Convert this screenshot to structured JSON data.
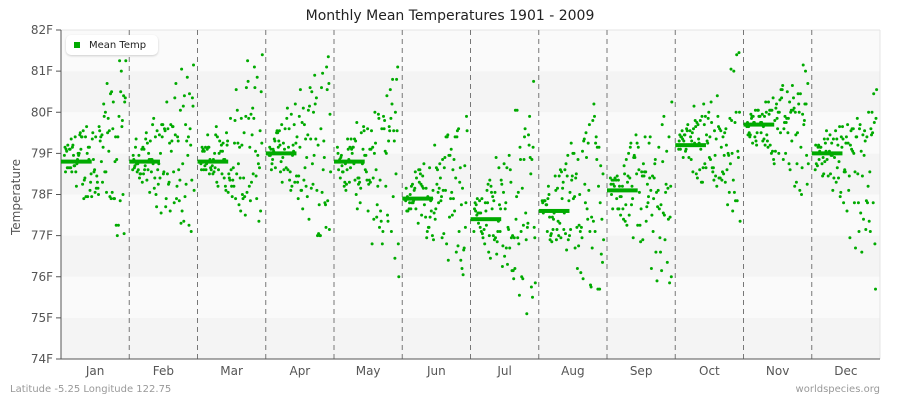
{
  "title": "Monthly Mean Temperatures 1901 - 2009",
  "footer": {
    "left": "Latitude -5.25 Longitude 122.75",
    "right": "worldspecies.org"
  },
  "legend": {
    "label": "Mean Temp",
    "color": "#00aa00"
  },
  "chart_data": {
    "type": "scatter",
    "title": "Monthly Mean Temperatures 1901 - 2009",
    "xlabel": "",
    "ylabel": "Temperature",
    "ylim": [
      74,
      82
    ],
    "yticks": [
      "74F",
      "75F",
      "76F",
      "77F",
      "78F",
      "79F",
      "80F",
      "81F",
      "82F"
    ],
    "categories": [
      "Jan",
      "Feb",
      "Mar",
      "Apr",
      "May",
      "Jun",
      "Jul",
      "Aug",
      "Sep",
      "Oct",
      "Nov",
      "Dec"
    ],
    "legend": [
      "Mean Temp"
    ],
    "legend_position": "top-left",
    "grid": "alternating horizontal bands, dashed vertical month separators",
    "series": [
      {
        "name": "Mean Temp (monthly long-term mean)",
        "values": [
          78.8,
          78.8,
          78.8,
          79.0,
          78.8,
          77.9,
          77.4,
          77.6,
          78.1,
          79.2,
          79.7,
          79.0
        ]
      }
    ],
    "yearly_ranges": [
      {
        "month": "Jan",
        "min": 76.3,
        "max": 81.3
      },
      {
        "month": "Feb",
        "min": 76.5,
        "max": 81.3
      },
      {
        "month": "Mar",
        "min": 77.0,
        "max": 81.7
      },
      {
        "month": "Apr",
        "min": 76.5,
        "max": 81.9
      },
      {
        "month": "May",
        "min": 75.7,
        "max": 81.1
      },
      {
        "month": "Jun",
        "min": 75.6,
        "max": 80.4
      },
      {
        "month": "Jul",
        "min": 74.8,
        "max": 81.1
      },
      {
        "month": "Aug",
        "min": 74.8,
        "max": 80.6
      },
      {
        "month": "Sep",
        "min": 75.0,
        "max": 80.6
      },
      {
        "month": "Oct",
        "min": 77.2,
        "max": 81.8
      },
      {
        "month": "Nov",
        "min": 77.5,
        "max": 81.1
      },
      {
        "month": "Dec",
        "min": 75.6,
        "max": 80.6
      }
    ],
    "colors": {
      "points": "#00aa00",
      "band_light": "#fafafa",
      "band_dark": "#f4f4f4",
      "axis": "#555555",
      "separator": "#777777"
    }
  }
}
